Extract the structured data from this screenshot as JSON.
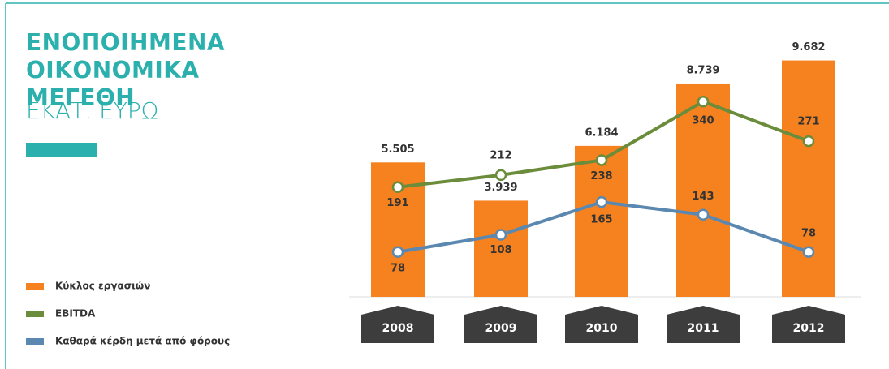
{
  "chart_data": {
    "type": "bar",
    "title": "ΕΝΟΠΟΙΗΜΕΝΑ ΟΙΚΟΝΟΜΙΚΑ ΜΕΓΕΘΗ",
    "subtitle": "ΕΚΑΤ. ΕΥΡΩ",
    "categories": [
      "2008",
      "2009",
      "2010",
      "2011",
      "2012"
    ],
    "ylim": [
      0,
      10000
    ],
    "y2lim": [
      0,
      425
    ],
    "series": [
      {
        "name": "Κύκλος εργασιών",
        "color": "#f5821f",
        "type": "bar",
        "values": [
          5505,
          3939,
          6184,
          8739,
          9682
        ],
        "value_labels": [
          "5.505",
          "3.939",
          "6.184",
          "8.739",
          "9.682"
        ]
      },
      {
        "name": "EBITDA",
        "color": "#6b8c3a",
        "type": "line",
        "axis": "y2",
        "values": [
          191,
          212,
          238,
          340,
          271
        ]
      },
      {
        "name": "Καθαρά κέρδη μετά από φόρους",
        "color": "#5b88b0",
        "type": "line",
        "axis": "y2",
        "values": [
          78,
          108,
          165,
          143,
          78
        ]
      }
    ]
  }
}
